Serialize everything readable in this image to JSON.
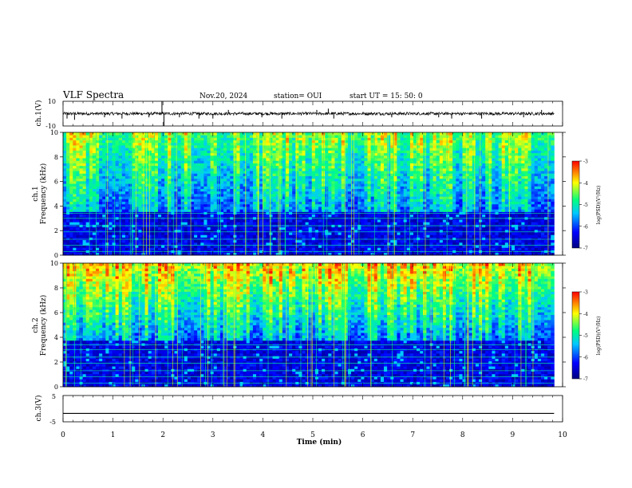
{
  "header": {
    "title": "VLF Spectra",
    "date": "Nov.20, 2024",
    "station": "station= OUI",
    "start": "start  UT  =   15: 50: 0"
  },
  "chart_data": [
    {
      "type": "line",
      "name": "ch1-waveform",
      "ylabel": "ch.1(V)",
      "ylim": [
        -10,
        10
      ],
      "yticks": [
        "10",
        "-10"
      ],
      "xlim": [
        0,
        10
      ],
      "baseline": 0,
      "noise_amplitude": 1.2,
      "spikes": [
        {
          "t": 0.08,
          "v": -4
        },
        {
          "t": 0.23,
          "v": -5
        },
        {
          "t": 0.83,
          "v": -3
        },
        {
          "t": 1.18,
          "v": -4
        },
        {
          "t": 1.72,
          "v": -3
        },
        {
          "t": 1.98,
          "v": 10
        },
        {
          "t": 2.02,
          "v": -10
        },
        {
          "t": 2.33,
          "v": -3
        },
        {
          "t": 2.72,
          "v": -4
        },
        {
          "t": 3.0,
          "v": -4
        },
        {
          "t": 3.31,
          "v": 3
        },
        {
          "t": 3.98,
          "v": -3
        },
        {
          "t": 4.38,
          "v": -4
        },
        {
          "t": 5.08,
          "v": 3
        },
        {
          "t": 5.31,
          "v": 4
        },
        {
          "t": 5.42,
          "v": -4
        },
        {
          "t": 6.58,
          "v": -3
        },
        {
          "t": 7.52,
          "v": -3
        },
        {
          "t": 7.78,
          "v": -4
        },
        {
          "t": 8.38,
          "v": -4
        },
        {
          "t": 9.22,
          "v": -3
        },
        {
          "t": 9.58,
          "v": 3
        }
      ]
    },
    {
      "type": "heatmap",
      "name": "ch1-spectrogram",
      "ylabel_top": "ch.1",
      "ylabel": "Frequency (kHz)",
      "ylim": [
        0,
        10
      ],
      "yticks": [
        0,
        2,
        4,
        6,
        8,
        10
      ],
      "xlim": [
        0,
        10
      ],
      "data_xmax": 9.83,
      "noise_floor_khz": 3.6,
      "hiss_level": 0.55,
      "colorbar": {
        "label": "log(PSD)(V²/Hz)",
        "range": [
          -7,
          -3
        ],
        "ticks": [
          "-3",
          "-4",
          "-5",
          "-6",
          "-7"
        ]
      }
    },
    {
      "type": "heatmap",
      "name": "ch2-spectrogram",
      "ylabel_top": "ch.2",
      "ylabel": "Frequency (kHz)",
      "ylim": [
        0,
        10
      ],
      "yticks": [
        0,
        2,
        4,
        6,
        8,
        10
      ],
      "xlim": [
        0,
        10
      ],
      "data_xmax": 9.83,
      "noise_floor_khz": 3.8,
      "hiss_level": 0.78,
      "colorbar": {
        "label": "log(PSD)(V²/Hz)",
        "range": [
          -7,
          -3
        ],
        "ticks": [
          "-3",
          "-4",
          "-5",
          "-6",
          "-7"
        ]
      }
    },
    {
      "type": "line",
      "name": "ch3-waveform",
      "ylabel": "ch.3(V)",
      "ylim": [
        -5,
        5
      ],
      "yticks": [
        "5",
        "-5"
      ],
      "xlim": [
        0,
        10
      ],
      "value": -1.8
    }
  ],
  "x_axis": {
    "label": "Time  (min)",
    "ticks": [
      "0",
      "1",
      "2",
      "3",
      "4",
      "5",
      "6",
      "7",
      "8",
      "9",
      "10"
    ]
  },
  "colors": {
    "waveform": "#000000",
    "colormap": [
      "#000080",
      "#0000ff",
      "#00c8ff",
      "#00ff80",
      "#ffff00",
      "#ff0000"
    ]
  }
}
